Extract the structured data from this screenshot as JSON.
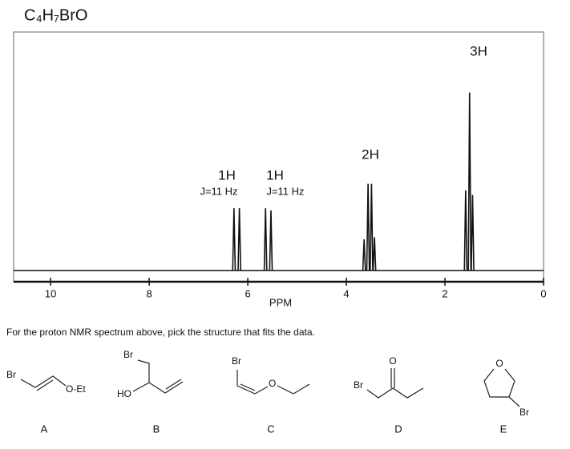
{
  "chart_data": {
    "type": "nmr",
    "title": "C₄H₇BrO",
    "xlabel": "PPM",
    "x": [
      6.28,
      6.17,
      5.64,
      5.53,
      3.64,
      3.56,
      3.49,
      3.43,
      1.58,
      1.5,
      1.44
    ],
    "values": [
      28,
      28,
      28,
      27,
      14,
      39,
      39,
      15,
      36,
      80,
      34
    ],
    "color": "#111111",
    "xlim": [
      10.75,
      0
    ],
    "ylim": [
      0,
      100
    ],
    "xticks": [
      10,
      8,
      6,
      4,
      2,
      0
    ],
    "annotations": [
      "1H",
      "J=11 Hz",
      "1H",
      "J=11 Hz",
      "2H",
      "3H"
    ]
  },
  "question": "For the proton NMR spectrum above, pick the structure that fits the data.",
  "structures": [
    {
      "label": "A",
      "atoms": [
        "Br",
        "O-Et"
      ]
    },
    {
      "label": "B",
      "atoms": [
        "Br",
        "HO"
      ]
    },
    {
      "label": "C",
      "atoms": [
        "Br",
        "O"
      ]
    },
    {
      "label": "D",
      "atoms": [
        "Br",
        "O"
      ]
    },
    {
      "label": "E",
      "atoms": [
        "O",
        "Br"
      ]
    }
  ]
}
